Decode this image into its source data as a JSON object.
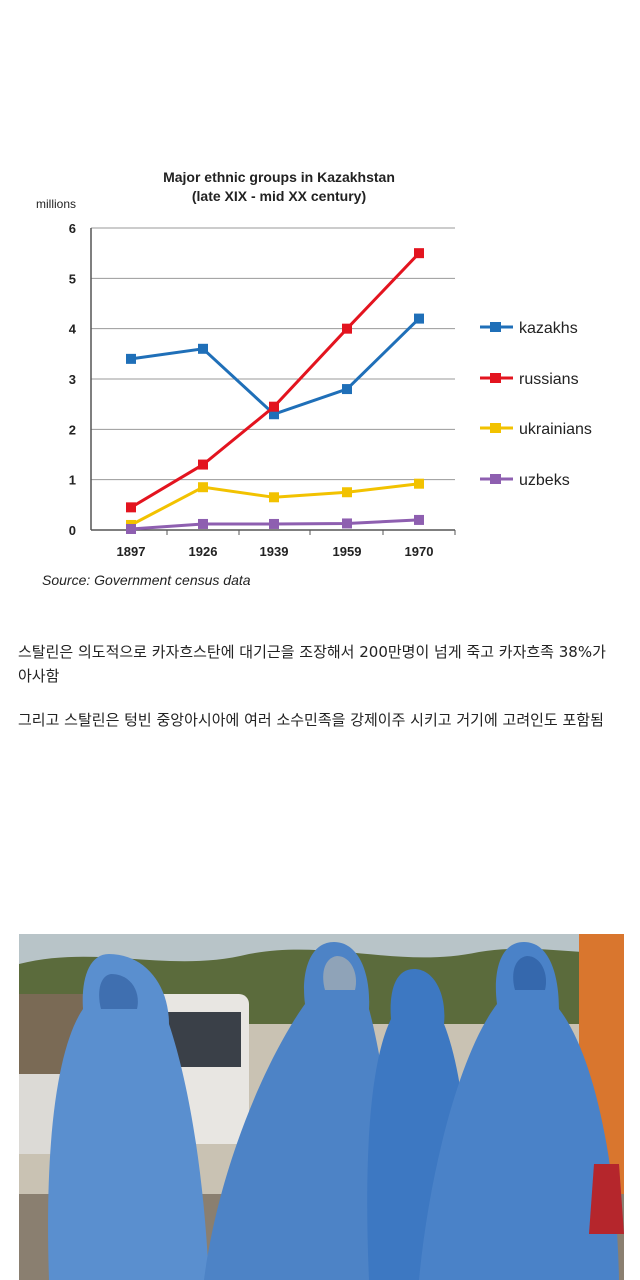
{
  "chart_data": {
    "type": "line",
    "title": "Major ethnic groups in Kazakhstan",
    "subtitle": "(late XIX - mid XX century)",
    "ylabel": "millions",
    "xlabel": "",
    "categories": [
      "1897",
      "1926",
      "1939",
      "1959",
      "1970"
    ],
    "ylim": [
      0,
      6
    ],
    "yticks": [
      "0",
      "1",
      "2",
      "3",
      "4",
      "5",
      "6"
    ],
    "grid": true,
    "legend_position": "right",
    "series": [
      {
        "name": "kazakhs",
        "color": "#1f6fb8",
        "values": [
          3.4,
          3.6,
          2.3,
          2.8,
          4.2
        ]
      },
      {
        "name": "russians",
        "color": "#e3141f",
        "values": [
          0.45,
          1.3,
          2.45,
          4.0,
          5.5
        ]
      },
      {
        "name": "ukrainians",
        "color": "#f2c200",
        "values": [
          0.1,
          0.85,
          0.65,
          0.75,
          0.92
        ]
      },
      {
        "name": "uzbeks",
        "color": "#8e5fb0",
        "values": [
          0.02,
          0.12,
          0.12,
          0.13,
          0.2
        ]
      }
    ],
    "source": "Source: Government census data"
  },
  "post": {
    "paragraph1": "스탈린은 의도적으로 카자흐스탄에 대기근을 조장해서 200만명이 넘게 죽고 카자흐족 38%가 아사함",
    "paragraph2": "그리고 스탈린은 텅빈 중앙아시아에 여러 소수민족을 강제이주 시키고 거기에 고려인도 포함됨"
  }
}
